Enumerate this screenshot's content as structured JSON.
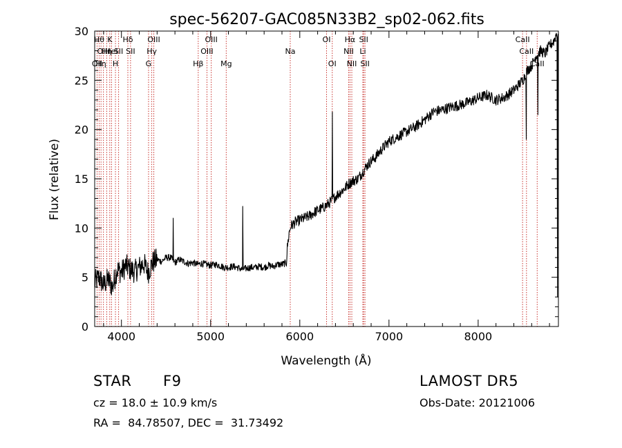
{
  "chart_data": {
    "type": "line",
    "title": "spec-56207-GAC085N33B2_sp02-062.fits",
    "xlabel": "Wavelength (Å)",
    "ylabel": "Flux (relative)",
    "xlim": [
      3700,
      8900
    ],
    "ylim": [
      0,
      30
    ],
    "xticks": [
      4000,
      5000,
      6000,
      7000,
      8000
    ],
    "yticks": [
      0,
      5,
      10,
      15,
      20,
      25,
      30
    ],
    "grid": false,
    "series": [
      {
        "x": [
          3700,
          3750,
          3800,
          3850,
          3900,
          3950,
          4000,
          4050,
          4100,
          4150,
          4200,
          4250,
          4300,
          4350,
          4400,
          4450,
          4500,
          4550,
          4600,
          4650,
          4700,
          4750,
          4800,
          4850,
          4900,
          4950,
          5000,
          5050,
          5100,
          5150,
          5200,
          5250,
          5300,
          5350,
          5400,
          5450,
          5500,
          5550,
          5600,
          5650,
          5700,
          5750,
          5800,
          5850,
          5860,
          5880,
          5900,
          5950,
          6000,
          6050,
          6100,
          6150,
          6200,
          6250,
          6300,
          6350,
          6400,
          6450,
          6500,
          6550,
          6600,
          6650,
          6700,
          6750,
          6800,
          6850,
          6900,
          6950,
          7000,
          7100,
          7200,
          7300,
          7400,
          7500,
          7600,
          7700,
          7800,
          7900,
          8000,
          8100,
          8200,
          8300,
          8400,
          8500,
          8550,
          8600,
          8650,
          8700,
          8750,
          8800,
          8850,
          8880,
          8900
        ],
        "y": [
          4.5,
          5.0,
          4.2,
          4.8,
          4.0,
          5.8,
          5.5,
          6.2,
          5.8,
          5.6,
          6.0,
          6.4,
          5.5,
          6.5,
          6.8,
          6.6,
          7.0,
          7.0,
          6.5,
          6.8,
          6.6,
          6.4,
          6.5,
          6.3,
          6.4,
          6.3,
          6.2,
          6.3,
          6.2,
          6.0,
          6.0,
          6.1,
          6.0,
          5.8,
          5.9,
          6.0,
          6.0,
          6.1,
          6.0,
          6.2,
          6.1,
          6.3,
          6.3,
          6.5,
          8.0,
          9.5,
          10.2,
          10.6,
          10.8,
          11.0,
          11.2,
          11.5,
          11.8,
          12.0,
          12.3,
          12.7,
          13.2,
          13.6,
          14.0,
          14.5,
          14.8,
          15.0,
          15.6,
          16.3,
          16.8,
          17.2,
          17.8,
          18.3,
          18.8,
          19.3,
          19.8,
          20.3,
          21.0,
          21.8,
          22.0,
          22.3,
          22.5,
          22.8,
          23.2,
          23.5,
          23.0,
          23.3,
          24.0,
          25.0,
          26.0,
          26.5,
          27.5,
          28.0,
          27.7,
          28.5,
          29.0,
          29.8,
          29.5
        ]
      }
    ],
    "spikes": [
      {
        "x": 4580,
        "y": 11.0
      },
      {
        "x": 5360,
        "y": 12.2
      },
      {
        "x": 6365,
        "y": 21.8
      },
      {
        "x": 8540,
        "y": 19.0
      },
      {
        "x": 8670,
        "y": 21.5
      },
      {
        "x": 8890,
        "y": 3.0
      }
    ],
    "line_markers": [
      {
        "x": 3727,
        "label": "OII",
        "row": 3
      },
      {
        "x": 3750,
        "label": "Hθ",
        "row": 1
      },
      {
        "x": 3771,
        "label": "Hη",
        "row": 3
      },
      {
        "x": 3798,
        "label": "OIII",
        "row": 2
      },
      {
        "x": 3835,
        "label": "Hη",
        "row": 2
      },
      {
        "x": 3869,
        "label": "K",
        "row": 1
      },
      {
        "x": 3889,
        "label": "HeI",
        "row": 2
      },
      {
        "x": 3933,
        "label": "H",
        "row": 3
      },
      {
        "x": 3968,
        "label": "SII",
        "row": 2
      },
      {
        "x": 4072,
        "label": "Hδ",
        "row": 1
      },
      {
        "x": 4102,
        "label": "SII",
        "row": 2
      },
      {
        "x": 4304,
        "label": "G",
        "row": 3
      },
      {
        "x": 4340,
        "label": "Hγ",
        "row": 2
      },
      {
        "x": 4363,
        "label": "OIII",
        "row": 1
      },
      {
        "x": 4861,
        "label": "Hβ",
        "row": 3
      },
      {
        "x": 4959,
        "label": "OIII",
        "row": 2
      },
      {
        "x": 5007,
        "label": "OIII",
        "row": 1
      },
      {
        "x": 5175,
        "label": "Mg",
        "row": 3
      },
      {
        "x": 5893,
        "label": "Na",
        "row": 2
      },
      {
        "x": 6300,
        "label": "OI",
        "row": 1
      },
      {
        "x": 6364,
        "label": "OI",
        "row": 3
      },
      {
        "x": 6548,
        "label": "NII",
        "row": 2
      },
      {
        "x": 6563,
        "label": "Hα",
        "row": 1
      },
      {
        "x": 6583,
        "label": "NII",
        "row": 3
      },
      {
        "x": 6707,
        "label": "Li",
        "row": 2
      },
      {
        "x": 6716,
        "label": "SII",
        "row": 1
      },
      {
        "x": 6731,
        "label": "SII",
        "row": 3
      },
      {
        "x": 8498,
        "label": "CaII",
        "row": 1
      },
      {
        "x": 8542,
        "label": "CaII",
        "row": 2
      },
      {
        "x": 8662,
        "label": "CaII",
        "row": 3
      }
    ]
  },
  "info": {
    "object_class": "STAR",
    "subclass": "F9",
    "survey": "LAMOST DR5",
    "cz": "cz = 18.0 ± 10.9 km/s",
    "obs_date": "Obs-Date: 20121006",
    "coords": "RA =  84.78507, DEC =  31.73492"
  },
  "colors": {
    "marker": "#c8322d",
    "spectrum": "#000000",
    "axes": "#000000"
  }
}
